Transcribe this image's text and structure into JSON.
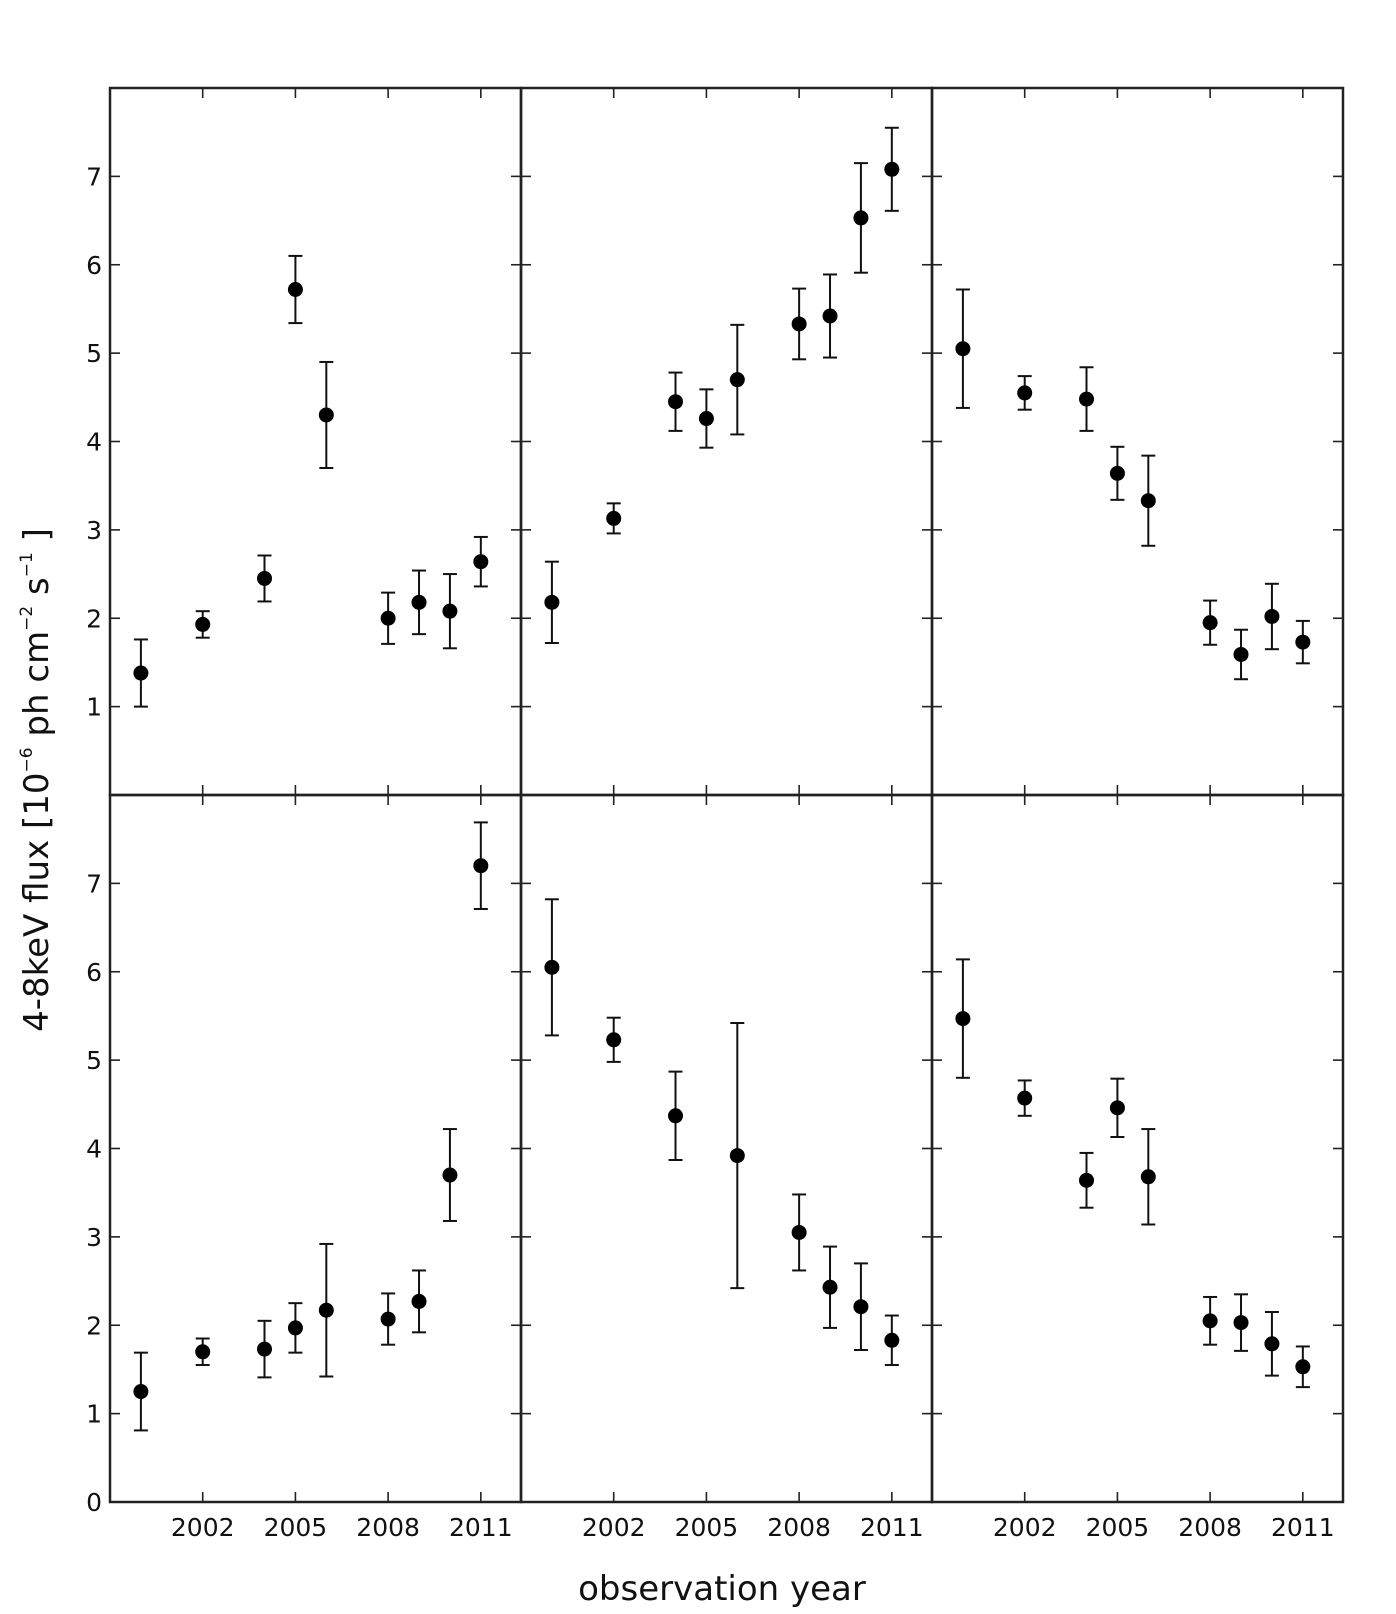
{
  "chart_data": {
    "type": "scatter",
    "layout": "2 rows x 3 columns, shared axes",
    "xlabel": "observation year",
    "ylabel": {
      "main": "4-8keV flux [10",
      "exp1": "−6",
      "mid": " ph cm",
      "exp2": "−2",
      "mid2": " s",
      "exp3": "−1",
      "end": " ]"
    },
    "xlim": [
      1999,
      2012.3
    ],
    "ylim": [
      0,
      8
    ],
    "xticks": [
      2002,
      2005,
      2008,
      2011
    ],
    "xtick_labels": [
      "2002",
      "2005",
      "2008",
      "2011"
    ],
    "yticks_top": [
      1,
      2,
      3,
      4,
      5,
      6,
      7
    ],
    "yticks_top_labels": [
      "1",
      "2",
      "3",
      "4",
      "5",
      "6",
      "7"
    ],
    "yticks_bottom": [
      0,
      1,
      2,
      3,
      4,
      5,
      6,
      7
    ],
    "yticks_bottom_labels": [
      "0",
      "1",
      "2",
      "3",
      "4",
      "5",
      "6",
      "7"
    ],
    "panels": [
      {
        "row": 0,
        "col": 0,
        "points": [
          {
            "x": 2000,
            "y": 1.38,
            "err": 0.38
          },
          {
            "x": 2002,
            "y": 1.93,
            "err": 0.15
          },
          {
            "x": 2004,
            "y": 2.45,
            "err": 0.26
          },
          {
            "x": 2005,
            "y": 5.72,
            "err": 0.38
          },
          {
            "x": 2006,
            "y": 4.3,
            "err": 0.6
          },
          {
            "x": 2008,
            "y": 2.0,
            "err": 0.29
          },
          {
            "x": 2009,
            "y": 2.18,
            "err": 0.36
          },
          {
            "x": 2010,
            "y": 2.08,
            "err": 0.42
          },
          {
            "x": 2011,
            "y": 2.64,
            "err": 0.28
          }
        ]
      },
      {
        "row": 0,
        "col": 1,
        "points": [
          {
            "x": 2000,
            "y": 2.18,
            "err": 0.46
          },
          {
            "x": 2002,
            "y": 3.13,
            "err": 0.17
          },
          {
            "x": 2004,
            "y": 4.45,
            "err": 0.33
          },
          {
            "x": 2005,
            "y": 4.26,
            "err": 0.33
          },
          {
            "x": 2006,
            "y": 4.7,
            "err": 0.62
          },
          {
            "x": 2008,
            "y": 5.33,
            "err": 0.4
          },
          {
            "x": 2009,
            "y": 5.42,
            "err": 0.47
          },
          {
            "x": 2010,
            "y": 6.53,
            "err": 0.62
          },
          {
            "x": 2011,
            "y": 7.08,
            "err": 0.47
          }
        ]
      },
      {
        "row": 0,
        "col": 2,
        "points": [
          {
            "x": 2000,
            "y": 5.05,
            "err": 0.67
          },
          {
            "x": 2002,
            "y": 4.55,
            "err": 0.19
          },
          {
            "x": 2004,
            "y": 4.48,
            "err": 0.36
          },
          {
            "x": 2005,
            "y": 3.64,
            "err": 0.3
          },
          {
            "x": 2006,
            "y": 3.33,
            "err": 0.51
          },
          {
            "x": 2008,
            "y": 1.95,
            "err": 0.25
          },
          {
            "x": 2009,
            "y": 1.59,
            "err": 0.28
          },
          {
            "x": 2010,
            "y": 2.02,
            "err": 0.37
          },
          {
            "x": 2011,
            "y": 1.73,
            "err": 0.24
          }
        ]
      },
      {
        "row": 1,
        "col": 0,
        "points": [
          {
            "x": 2000,
            "y": 1.25,
            "err": 0.44
          },
          {
            "x": 2002,
            "y": 1.7,
            "err": 0.15
          },
          {
            "x": 2004,
            "y": 1.73,
            "err": 0.32
          },
          {
            "x": 2005,
            "y": 1.97,
            "err": 0.28
          },
          {
            "x": 2006,
            "y": 2.17,
            "err": 0.75
          },
          {
            "x": 2008,
            "y": 2.07,
            "err": 0.29
          },
          {
            "x": 2009,
            "y": 2.27,
            "err": 0.35
          },
          {
            "x": 2010,
            "y": 3.7,
            "err": 0.52
          },
          {
            "x": 2011,
            "y": 7.2,
            "err": 0.49
          }
        ]
      },
      {
        "row": 1,
        "col": 1,
        "points": [
          {
            "x": 2000,
            "y": 6.05,
            "err": 0.77
          },
          {
            "x": 2002,
            "y": 5.23,
            "err": 0.25
          },
          {
            "x": 2004,
            "y": 4.37,
            "err": 0.5
          },
          {
            "x": 2006,
            "y": 3.92,
            "err": 1.5
          },
          {
            "x": 2008,
            "y": 3.05,
            "err": 0.43
          },
          {
            "x": 2009,
            "y": 2.43,
            "err": 0.46
          },
          {
            "x": 2010,
            "y": 2.21,
            "err": 0.49
          },
          {
            "x": 2011,
            "y": 1.83,
            "err": 0.28
          }
        ]
      },
      {
        "row": 1,
        "col": 2,
        "points": [
          {
            "x": 2000,
            "y": 5.47,
            "err": 0.67
          },
          {
            "x": 2002,
            "y": 4.57,
            "err": 0.2
          },
          {
            "x": 2004,
            "y": 3.64,
            "err": 0.31
          },
          {
            "x": 2005,
            "y": 4.46,
            "err": 0.33
          },
          {
            "x": 2006,
            "y": 3.68,
            "err": 0.54
          },
          {
            "x": 2008,
            "y": 2.05,
            "err": 0.27
          },
          {
            "x": 2009,
            "y": 2.03,
            "err": 0.32
          },
          {
            "x": 2010,
            "y": 1.79,
            "err": 0.36
          },
          {
            "x": 2011,
            "y": 1.53,
            "err": 0.23
          }
        ]
      }
    ],
    "marker_color": "#000000",
    "grid": false
  }
}
